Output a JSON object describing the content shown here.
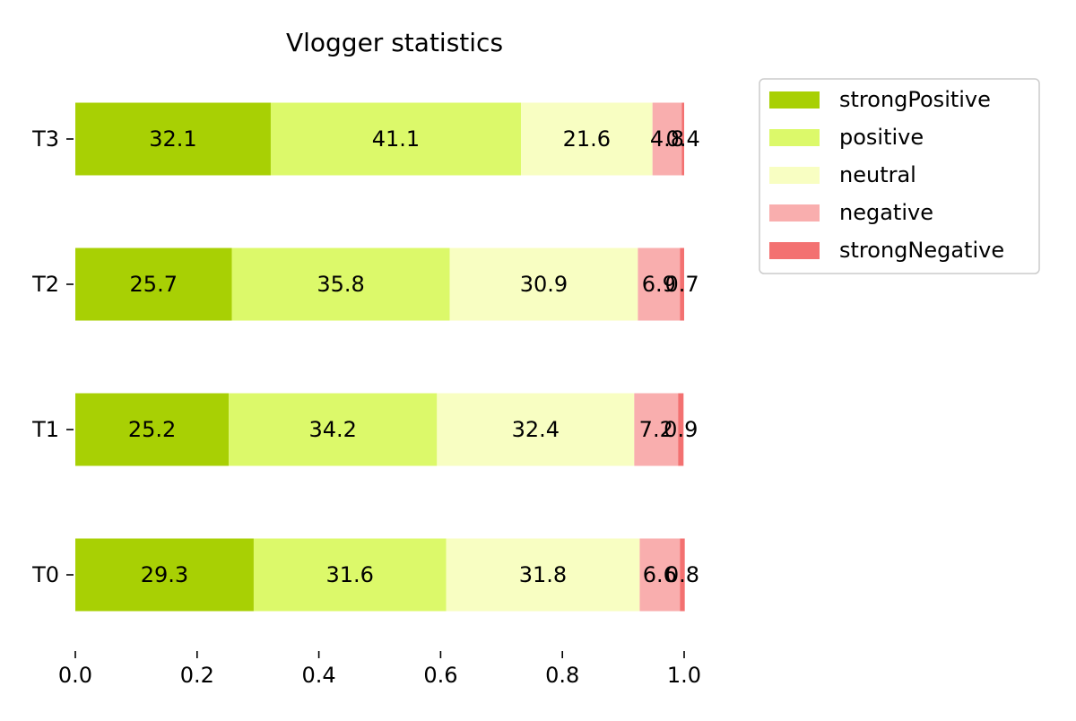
{
  "chart_data": {
    "type": "bar",
    "orientation": "horizontal",
    "stacked": true,
    "title": "Vlogger statistics",
    "categories": [
      "T0",
      "T1",
      "T2",
      "T3"
    ],
    "series": [
      {
        "name": "strongPositive",
        "color": "#a8d004",
        "values": [
          0.293,
          0.252,
          0.257,
          0.321
        ],
        "labels": [
          "29.3",
          "25.2",
          "25.7",
          "32.1"
        ]
      },
      {
        "name": "positive",
        "color": "#dcf96a",
        "values": [
          0.316,
          0.342,
          0.358,
          0.411
        ],
        "labels": [
          "31.6",
          "34.2",
          "35.8",
          "41.1"
        ]
      },
      {
        "name": "neutral",
        "color": "#f8fec2",
        "values": [
          0.318,
          0.324,
          0.309,
          0.216
        ],
        "labels": [
          "31.8",
          "32.4",
          "30.9",
          "21.6"
        ]
      },
      {
        "name": "negative",
        "color": "#f9aeae",
        "values": [
          0.066,
          0.072,
          0.069,
          0.048
        ],
        "labels": [
          "6.6",
          "7.2",
          "6.9",
          "4.8"
        ]
      },
      {
        "name": "strongNegative",
        "color": "#f37171",
        "values": [
          0.008,
          0.009,
          0.007,
          0.004
        ],
        "labels": [
          "0.8",
          "0.9",
          "0.7",
          "0.4"
        ]
      }
    ],
    "xlim": [
      0.0,
      1.0
    ],
    "xticks": [
      "0.0",
      "0.2",
      "0.4",
      "0.6",
      "0.8",
      "1.0"
    ],
    "grid": false,
    "legend_position": "outside-upper-right"
  }
}
